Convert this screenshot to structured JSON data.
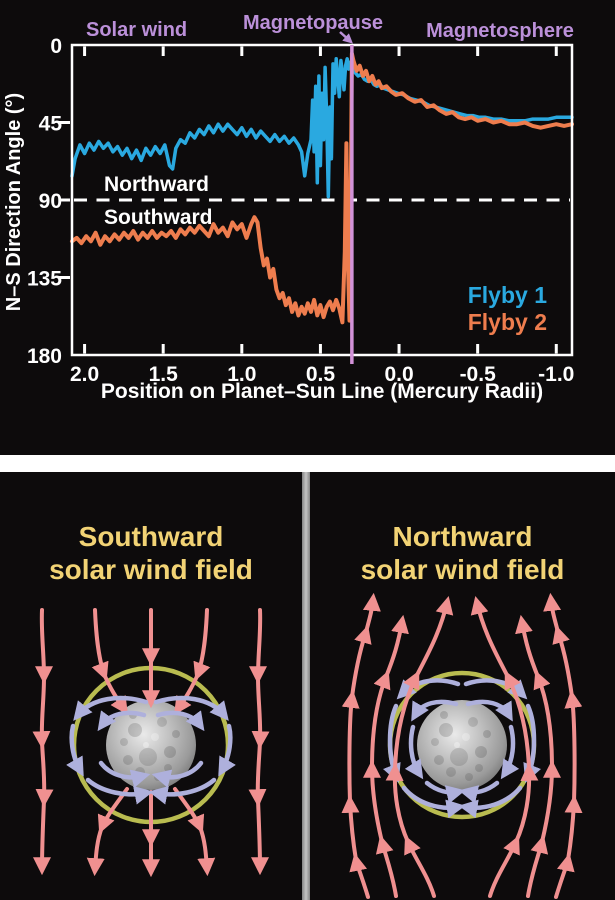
{
  "colors": {
    "background": "#0d0b0c",
    "region_label_purple": "#bb90d9",
    "magnetopause_line": "#d292d8",
    "flyby1_blue": "#2aa9e0",
    "flyby2_orange": "#ee7d4e",
    "panel_title_yellow": "#f2d375",
    "solar_wind_arrow_pink": "#f09090",
    "planet_field_arrow_lavender": "#aeb0dc",
    "magnetopause_circle_olive": "#b9bc50",
    "divider_gray": "#9a9a9a",
    "axis_white": "#ffffff"
  },
  "top_chart": {
    "region_labels": {
      "solar_wind": "Solar wind",
      "magnetopause": "Magnetopause",
      "magnetosphere": "Magnetosphere"
    },
    "y_axis_title": "N–S Direction Angle (°)",
    "x_axis_title": "Position on Planet–Sun Line (Mercury Radii)",
    "northward_label": "Northward",
    "southward_label": "Southward",
    "legend": {
      "flyby1": "Flyby 1",
      "flyby2": "Flyby 2"
    }
  },
  "bottom_panels": {
    "left_title": "Southward\nsolar wind field",
    "right_title": "Northward\nsolar wind field"
  },
  "chart_data": {
    "type": "line",
    "title": "",
    "xlabel": "Position on Planet–Sun Line (Mercury Radii)",
    "ylabel": "N–S Direction Angle (°)",
    "x_ticks": [
      "2.0",
      "1.5",
      "1.0",
      "0.5",
      "0.0",
      "-0.5",
      "-1.0"
    ],
    "y_ticks": [
      0,
      45,
      90,
      135,
      180
    ],
    "x_range": [
      2.08,
      -1.1
    ],
    "y_range": [
      0,
      180
    ],
    "y_axis_inverted_downward": true,
    "grid": false,
    "legend_position": "lower right inside plot",
    "reference": {
      "northward_southward_boundary_deg": 90,
      "magnetopause_position_radii": 0.3
    },
    "series": [
      {
        "name": "Flyby 1",
        "color": "#2aa9e0",
        "points": [
          [
            2.08,
            76
          ],
          [
            2.06,
            66
          ],
          [
            2.03,
            58
          ],
          [
            2.0,
            63
          ],
          [
            1.97,
            57
          ],
          [
            1.94,
            61
          ],
          [
            1.91,
            56
          ],
          [
            1.88,
            60
          ],
          [
            1.85,
            57
          ],
          [
            1.82,
            62
          ],
          [
            1.79,
            59
          ],
          [
            1.76,
            64
          ],
          [
            1.73,
            60
          ],
          [
            1.7,
            66
          ],
          [
            1.67,
            61
          ],
          [
            1.64,
            67
          ],
          [
            1.61,
            60
          ],
          [
            1.58,
            64
          ],
          [
            1.55,
            59
          ],
          [
            1.52,
            63
          ],
          [
            1.49,
            58
          ],
          [
            1.46,
            70
          ],
          [
            1.44,
            72
          ],
          [
            1.42,
            60
          ],
          [
            1.39,
            55
          ],
          [
            1.36,
            57
          ],
          [
            1.33,
            51
          ],
          [
            1.3,
            54
          ],
          [
            1.27,
            49
          ],
          [
            1.24,
            52
          ],
          [
            1.21,
            47
          ],
          [
            1.18,
            51
          ],
          [
            1.15,
            46
          ],
          [
            1.12,
            50
          ],
          [
            1.09,
            46
          ],
          [
            1.06,
            49
          ],
          [
            1.03,
            52
          ],
          [
            1.0,
            48
          ],
          [
            0.97,
            53
          ],
          [
            0.94,
            49
          ],
          [
            0.91,
            54
          ],
          [
            0.88,
            50
          ],
          [
            0.85,
            53
          ],
          [
            0.82,
            56
          ],
          [
            0.79,
            52
          ],
          [
            0.76,
            56
          ],
          [
            0.73,
            53
          ],
          [
            0.7,
            57
          ],
          [
            0.67,
            54
          ],
          [
            0.64,
            58
          ],
          [
            0.62,
            62
          ],
          [
            0.6,
            76
          ],
          [
            0.58,
            63
          ],
          [
            0.56,
            55
          ],
          [
            0.55,
            32
          ],
          [
            0.54,
            62
          ],
          [
            0.53,
            24
          ],
          [
            0.52,
            80
          ],
          [
            0.51,
            18
          ],
          [
            0.5,
            70
          ],
          [
            0.49,
            28
          ],
          [
            0.48,
            55
          ],
          [
            0.47,
            13
          ],
          [
            0.46,
            42
          ],
          [
            0.45,
            88
          ],
          [
            0.44,
            36
          ],
          [
            0.43,
            66
          ],
          [
            0.42,
            11
          ],
          [
            0.41,
            28
          ],
          [
            0.4,
            8
          ],
          [
            0.39,
            18
          ],
          [
            0.38,
            30
          ],
          [
            0.37,
            9
          ],
          [
            0.36,
            16
          ],
          [
            0.35,
            26
          ],
          [
            0.34,
            12
          ],
          [
            0.33,
            8
          ],
          [
            0.32,
            14
          ],
          [
            0.31,
            10
          ],
          [
            0.3,
            13
          ],
          [
            0.28,
            16
          ],
          [
            0.26,
            18
          ],
          [
            0.24,
            17
          ],
          [
            0.22,
            20
          ],
          [
            0.2,
            21
          ],
          [
            0.18,
            20
          ],
          [
            0.16,
            23
          ],
          [
            0.14,
            24
          ],
          [
            0.12,
            23
          ],
          [
            0.1,
            25
          ],
          [
            0.07,
            26
          ],
          [
            0.04,
            27
          ],
          [
            0.01,
            28
          ],
          [
            -0.03,
            29
          ],
          [
            -0.07,
            31
          ],
          [
            -0.11,
            32
          ],
          [
            -0.15,
            33
          ],
          [
            -0.19,
            35
          ],
          [
            -0.23,
            36
          ],
          [
            -0.27,
            37
          ],
          [
            -0.31,
            38
          ],
          [
            -0.35,
            39
          ],
          [
            -0.39,
            40
          ],
          [
            -0.43,
            41
          ],
          [
            -0.47,
            41
          ],
          [
            -0.51,
            42
          ],
          [
            -0.55,
            42
          ],
          [
            -0.6,
            43
          ],
          [
            -0.65,
            43
          ],
          [
            -0.7,
            44
          ],
          [
            -0.75,
            44
          ],
          [
            -0.8,
            44
          ],
          [
            -0.85,
            43
          ],
          [
            -0.9,
            43
          ],
          [
            -0.95,
            43
          ],
          [
            -1.0,
            42
          ],
          [
            -1.05,
            42
          ],
          [
            -1.1,
            42
          ]
        ]
      },
      {
        "name": "Flyby 2",
        "color": "#ee7d4e",
        "points": [
          [
            2.08,
            114
          ],
          [
            2.05,
            112
          ],
          [
            2.02,
            115
          ],
          [
            1.99,
            111
          ],
          [
            1.96,
            114
          ],
          [
            1.93,
            109
          ],
          [
            1.9,
            116
          ],
          [
            1.87,
            111
          ],
          [
            1.84,
            114
          ],
          [
            1.81,
            110
          ],
          [
            1.78,
            113
          ],
          [
            1.75,
            109
          ],
          [
            1.72,
            112
          ],
          [
            1.69,
            108
          ],
          [
            1.66,
            113
          ],
          [
            1.63,
            109
          ],
          [
            1.6,
            112
          ],
          [
            1.57,
            108
          ],
          [
            1.54,
            112
          ],
          [
            1.51,
            109
          ],
          [
            1.48,
            111
          ],
          [
            1.45,
            108
          ],
          [
            1.42,
            112
          ],
          [
            1.39,
            107
          ],
          [
            1.36,
            110
          ],
          [
            1.33,
            106
          ],
          [
            1.3,
            109
          ],
          [
            1.27,
            105
          ],
          [
            1.24,
            108
          ],
          [
            1.21,
            111
          ],
          [
            1.18,
            104
          ],
          [
            1.15,
            109
          ],
          [
            1.12,
            106
          ],
          [
            1.09,
            111
          ],
          [
            1.06,
            103
          ],
          [
            1.03,
            107
          ],
          [
            1.0,
            104
          ],
          [
            0.97,
            112
          ],
          [
            0.94,
            104
          ],
          [
            0.92,
            100
          ],
          [
            0.9,
            103
          ],
          [
            0.88,
            118
          ],
          [
            0.86,
            128
          ],
          [
            0.84,
            124
          ],
          [
            0.82,
            135
          ],
          [
            0.8,
            130
          ],
          [
            0.78,
            142
          ],
          [
            0.76,
            147
          ],
          [
            0.74,
            144
          ],
          [
            0.72,
            151
          ],
          [
            0.7,
            147
          ],
          [
            0.68,
            155
          ],
          [
            0.66,
            150
          ],
          [
            0.64,
            157
          ],
          [
            0.62,
            152
          ],
          [
            0.6,
            156
          ],
          [
            0.58,
            150
          ],
          [
            0.56,
            155
          ],
          [
            0.54,
            148
          ],
          [
            0.52,
            157
          ],
          [
            0.5,
            151
          ],
          [
            0.48,
            158
          ],
          [
            0.46,
            152
          ],
          [
            0.44,
            149
          ],
          [
            0.42,
            154
          ],
          [
            0.4,
            148
          ],
          [
            0.38,
            153
          ],
          [
            0.36,
            161
          ],
          [
            0.345,
            120
          ],
          [
            0.335,
            57
          ],
          [
            0.325,
            125
          ],
          [
            0.315,
            160
          ],
          [
            0.308,
            100
          ],
          [
            0.3,
            5
          ],
          [
            0.29,
            9
          ],
          [
            0.27,
            15
          ],
          [
            0.25,
            12
          ],
          [
            0.23,
            18
          ],
          [
            0.21,
            15
          ],
          [
            0.19,
            21
          ],
          [
            0.17,
            18
          ],
          [
            0.15,
            23
          ],
          [
            0.13,
            21
          ],
          [
            0.11,
            25
          ],
          [
            0.08,
            24
          ],
          [
            0.05,
            27
          ],
          [
            0.02,
            29
          ],
          [
            -0.02,
            28
          ],
          [
            -0.06,
            31
          ],
          [
            -0.1,
            33
          ],
          [
            -0.14,
            32
          ],
          [
            -0.18,
            36
          ],
          [
            -0.22,
            35
          ],
          [
            -0.26,
            38
          ],
          [
            -0.3,
            40
          ],
          [
            -0.34,
            39
          ],
          [
            -0.38,
            42
          ],
          [
            -0.42,
            43
          ],
          [
            -0.46,
            42
          ],
          [
            -0.5,
            44
          ],
          [
            -0.55,
            43
          ],
          [
            -0.6,
            45
          ],
          [
            -0.65,
            44
          ],
          [
            -0.7,
            46
          ],
          [
            -0.75,
            46
          ],
          [
            -0.8,
            45
          ],
          [
            -0.85,
            47
          ],
          [
            -0.9,
            48
          ],
          [
            -0.95,
            47
          ],
          [
            -1.0,
            46
          ],
          [
            -1.05,
            47
          ],
          [
            -1.1,
            46
          ]
        ]
      }
    ]
  }
}
